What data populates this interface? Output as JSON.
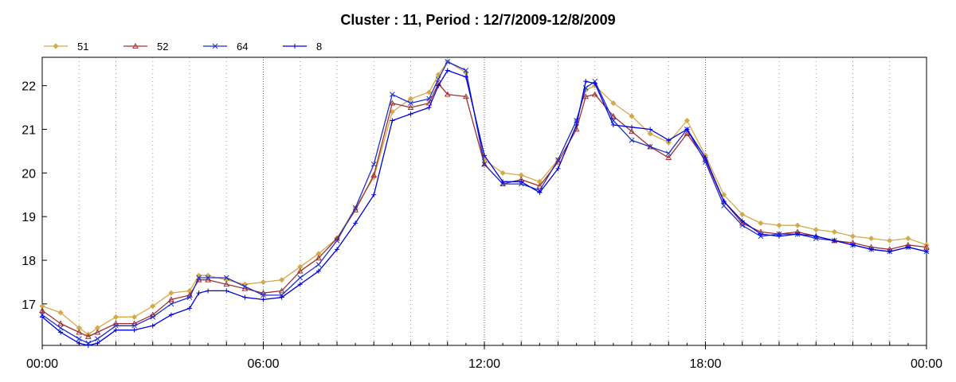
{
  "chart_data": {
    "type": "line",
    "title": "Cluster : 11, Period : 12/7/2009-12/8/2009",
    "xlabel": "",
    "ylabel": "",
    "x_ticks": [
      "00:00",
      "06:00",
      "12:00",
      "18:00",
      "00:00"
    ],
    "x_tick_hours": [
      0,
      6,
      12,
      18,
      24
    ],
    "x_range_hours": [
      0,
      24
    ],
    "y_ticks": [
      17,
      18,
      19,
      20,
      21,
      22
    ],
    "ylim": [
      16.05,
      22.65
    ],
    "grid": "vertical dotted every 1 hour (stronger every 6 hours)",
    "legend_position": "top-left",
    "colors": {
      "51": "#D4A94A",
      "52": "#A03030",
      "64": "#1E2FC8",
      "8": "#0000E0"
    },
    "markers": {
      "51": "diamond",
      "52": "triangle",
      "64": "cross",
      "8": "plus"
    },
    "x": [
      0.0,
      0.5,
      1.0,
      1.25,
      1.5,
      2.0,
      2.5,
      3.0,
      3.5,
      4.0,
      4.25,
      4.5,
      5.0,
      5.5,
      6.0,
      6.5,
      7.0,
      7.5,
      8.0,
      8.5,
      9.0,
      9.5,
      10.0,
      10.5,
      10.75,
      11.0,
      11.5,
      12.0,
      12.5,
      13.0,
      13.5,
      14.0,
      14.5,
      14.75,
      15.0,
      15.5,
      16.0,
      16.5,
      17.0,
      17.5,
      18.0,
      18.5,
      19.0,
      19.5,
      20.0,
      20.5,
      21.0,
      21.5,
      22.0,
      22.5,
      23.0,
      23.5,
      24.0
    ],
    "series": [
      {
        "name": "51",
        "values": [
          16.95,
          16.8,
          16.45,
          16.3,
          16.45,
          16.7,
          16.7,
          16.95,
          17.25,
          17.3,
          17.65,
          17.65,
          17.55,
          17.45,
          17.5,
          17.55,
          17.85,
          18.15,
          18.5,
          19.2,
          19.9,
          21.4,
          21.7,
          21.85,
          22.25,
          22.55,
          22.3,
          20.3,
          20.0,
          19.95,
          19.8,
          20.3,
          21.2,
          21.9,
          22.0,
          21.6,
          21.3,
          20.9,
          20.7,
          21.2,
          20.4,
          19.5,
          19.05,
          18.85,
          18.8,
          18.8,
          18.7,
          18.65,
          18.55,
          18.5,
          18.45,
          18.5,
          18.35
        ]
      },
      {
        "name": "52",
        "values": [
          16.85,
          16.55,
          16.35,
          16.25,
          16.35,
          16.55,
          16.55,
          16.75,
          17.1,
          17.2,
          17.55,
          17.55,
          17.45,
          17.35,
          17.25,
          17.3,
          17.75,
          18.05,
          18.5,
          19.15,
          19.95,
          21.6,
          21.5,
          21.6,
          22.05,
          21.8,
          21.75,
          20.2,
          19.75,
          19.85,
          19.7,
          20.25,
          21.0,
          21.75,
          21.8,
          21.3,
          20.95,
          20.6,
          20.35,
          20.9,
          20.3,
          19.35,
          18.85,
          18.65,
          18.6,
          18.65,
          18.55,
          18.45,
          18.4,
          18.3,
          18.25,
          18.35,
          18.3
        ]
      },
      {
        "name": "64",
        "values": [
          16.75,
          16.45,
          16.2,
          16.1,
          16.2,
          16.5,
          16.5,
          16.7,
          17.0,
          17.15,
          17.6,
          17.6,
          17.6,
          17.4,
          17.2,
          17.2,
          17.6,
          17.9,
          18.45,
          19.2,
          20.2,
          21.8,
          21.6,
          21.7,
          22.15,
          22.55,
          22.35,
          20.2,
          19.75,
          19.75,
          19.6,
          20.3,
          21.2,
          21.95,
          22.1,
          21.2,
          20.75,
          20.6,
          20.45,
          21.0,
          20.25,
          19.25,
          18.8,
          18.55,
          18.6,
          18.6,
          18.5,
          18.45,
          18.35,
          18.25,
          18.2,
          18.3,
          18.2
        ]
      },
      {
        "name": "8",
        "values": [
          16.7,
          16.35,
          16.1,
          16.05,
          16.1,
          16.4,
          16.4,
          16.5,
          16.75,
          16.9,
          17.25,
          17.3,
          17.3,
          17.15,
          17.1,
          17.15,
          17.45,
          17.75,
          18.25,
          18.85,
          19.5,
          21.2,
          21.35,
          21.5,
          22.0,
          22.35,
          22.2,
          20.4,
          19.8,
          19.8,
          19.55,
          20.1,
          21.1,
          22.1,
          22.05,
          21.1,
          21.05,
          21.0,
          20.75,
          21.0,
          20.35,
          19.35,
          18.9,
          18.6,
          18.55,
          18.6,
          18.55,
          18.45,
          18.35,
          18.25,
          18.2,
          18.3,
          18.2
        ]
      }
    ]
  }
}
